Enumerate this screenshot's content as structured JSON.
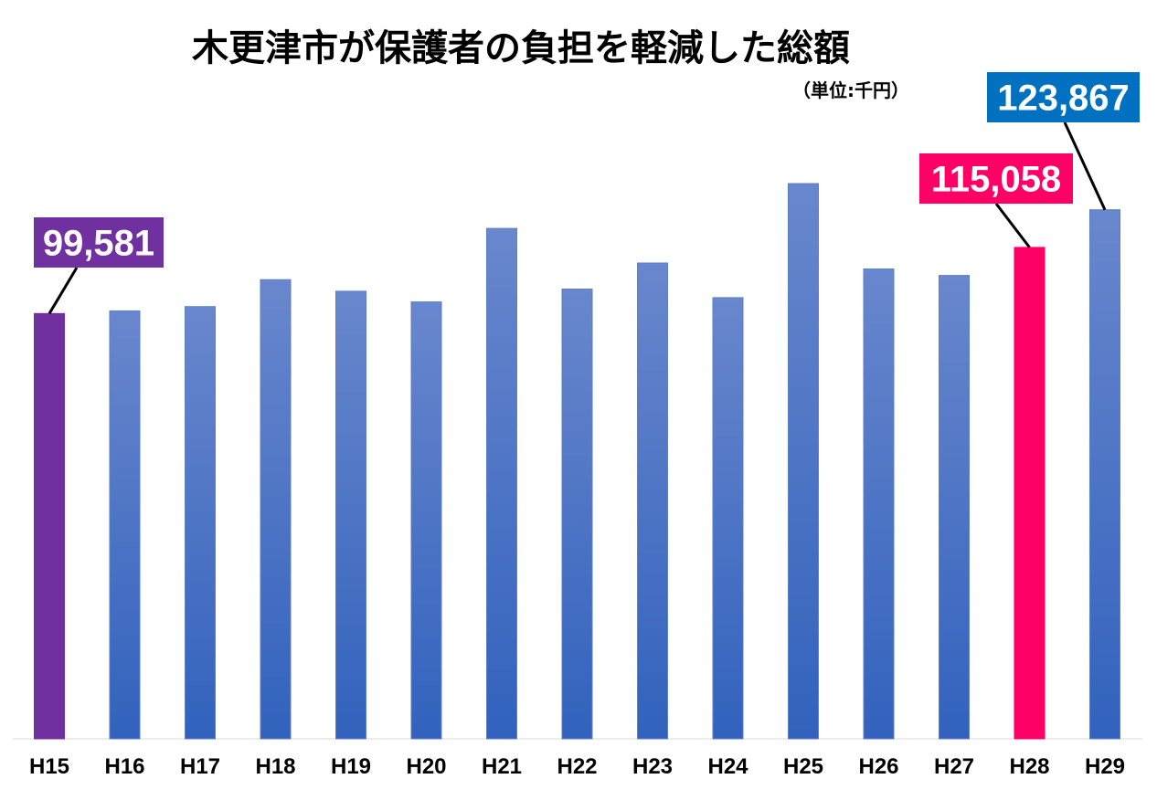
{
  "chart_data": {
    "type": "bar",
    "title": "木更津市が保護者の負担を軽減した総額",
    "subtitle": "（単位:千円）",
    "categories": [
      "H15",
      "H16",
      "H17",
      "H18",
      "H19",
      "H20",
      "H21",
      "H22",
      "H23",
      "H24",
      "H25",
      "H26",
      "H27",
      "H28",
      "H29"
    ],
    "values": [
      99581,
      100200,
      101200,
      107500,
      104800,
      102300,
      119500,
      105300,
      111400,
      103300,
      130000,
      110000,
      108500,
      115058,
      123867
    ],
    "ylim": [
      0,
      130000
    ],
    "grid": false,
    "colors": {
      "default_bar": "#4472C4",
      "default_bar_top": "#6987CD",
      "default_bar_bottom": "#3262BD",
      "first_bar": "#7030A0",
      "highlight_bar": "#FF0066"
    },
    "highlights": {
      "H15": "#7030A0",
      "H28": "#FF0066"
    },
    "callouts": [
      {
        "category": "H15",
        "label": "99,581",
        "color": "#7030A0"
      },
      {
        "category": "H28",
        "label": "115,058",
        "color": "#FF0066"
      },
      {
        "category": "H29",
        "label": "123,867",
        "color": "#0070C0"
      }
    ]
  }
}
